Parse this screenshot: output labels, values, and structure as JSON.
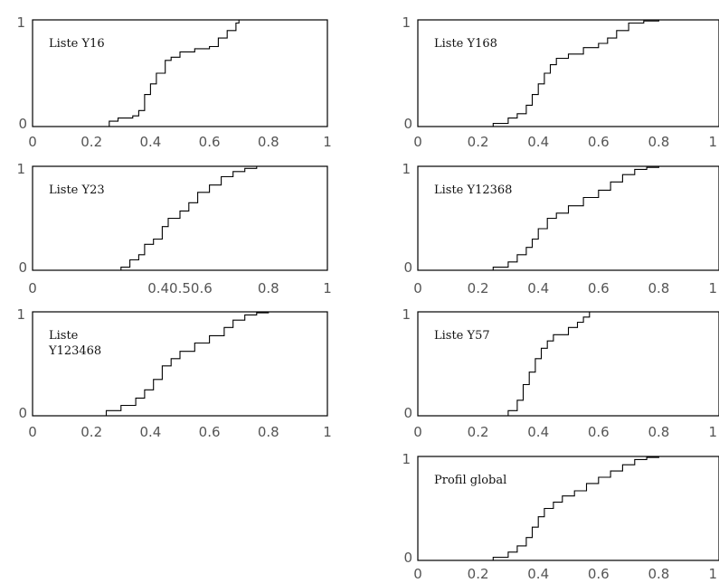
{
  "chart_data": [
    {
      "type": "line",
      "step": true,
      "annotation": [
        "Liste Y16"
      ],
      "xlim": [
        0,
        1
      ],
      "ylim": [
        0,
        1
      ],
      "xticks": [
        "0",
        "0.2",
        "0.4",
        "0.6",
        "0.8",
        "1"
      ],
      "xtick_values": [
        0,
        0.2,
        0.4,
        0.6,
        0.8,
        1
      ],
      "yticks": [
        "0",
        "1"
      ],
      "x": [
        0.2,
        0.26,
        0.29,
        0.34,
        0.36,
        0.38,
        0.4,
        0.42,
        0.45,
        0.47,
        0.5,
        0.55,
        0.6,
        0.63,
        0.66,
        0.69,
        0.7,
        1.0
      ],
      "y": [
        0.0,
        0.05,
        0.08,
        0.1,
        0.15,
        0.3,
        0.4,
        0.5,
        0.62,
        0.65,
        0.7,
        0.73,
        0.75,
        0.83,
        0.9,
        0.97,
        1.0,
        1.0
      ]
    },
    {
      "type": "line",
      "step": true,
      "annotation": [
        "Liste Y168"
      ],
      "xlim": [
        0,
        1
      ],
      "ylim": [
        0,
        1
      ],
      "xticks": [
        "0",
        "0.2",
        "0.4",
        "0.6",
        "0.8",
        "1"
      ],
      "xtick_values": [
        0,
        0.2,
        0.4,
        0.6,
        0.8,
        1
      ],
      "yticks": [
        "0",
        "1"
      ],
      "x": [
        0.2,
        0.25,
        0.3,
        0.33,
        0.36,
        0.38,
        0.4,
        0.42,
        0.44,
        0.46,
        0.5,
        0.55,
        0.6,
        0.63,
        0.66,
        0.7,
        0.75,
        0.8,
        1.0
      ],
      "y": [
        0.0,
        0.03,
        0.08,
        0.12,
        0.2,
        0.3,
        0.4,
        0.5,
        0.58,
        0.64,
        0.68,
        0.74,
        0.78,
        0.83,
        0.9,
        0.97,
        0.99,
        1.0,
        1.0
      ]
    },
    {
      "type": "line",
      "step": true,
      "annotation": [
        "Liste Y23"
      ],
      "xlim": [
        0,
        1
      ],
      "ylim": [
        0,
        1
      ],
      "xticks": [
        "0",
        "0.40.50.6",
        "0.8",
        "1"
      ],
      "xtick_values": [
        0,
        0.5,
        0.8,
        1
      ],
      "yticks": [
        "0",
        "1"
      ],
      "x": [
        0.27,
        0.3,
        0.33,
        0.36,
        0.38,
        0.41,
        0.44,
        0.46,
        0.5,
        0.53,
        0.56,
        0.6,
        0.64,
        0.68,
        0.72,
        0.76,
        1.0
      ],
      "y": [
        0.0,
        0.03,
        0.1,
        0.15,
        0.25,
        0.3,
        0.42,
        0.5,
        0.57,
        0.65,
        0.75,
        0.82,
        0.9,
        0.95,
        0.98,
        1.0,
        1.0
      ]
    },
    {
      "type": "line",
      "step": true,
      "annotation": [
        "Liste Y12368"
      ],
      "xlim": [
        0,
        1
      ],
      "ylim": [
        0,
        1
      ],
      "xticks": [
        "0",
        "0.2",
        "0.4",
        "0.6",
        "0.8",
        "1"
      ],
      "xtick_values": [
        0,
        0.2,
        0.4,
        0.6,
        0.8,
        1
      ],
      "yticks": [
        "0",
        "1"
      ],
      "x": [
        0.2,
        0.25,
        0.3,
        0.33,
        0.36,
        0.38,
        0.4,
        0.43,
        0.46,
        0.5,
        0.55,
        0.6,
        0.64,
        0.68,
        0.72,
        0.76,
        0.8,
        1.0
      ],
      "y": [
        0.0,
        0.03,
        0.08,
        0.15,
        0.22,
        0.3,
        0.4,
        0.5,
        0.55,
        0.62,
        0.7,
        0.77,
        0.85,
        0.92,
        0.97,
        0.99,
        1.0,
        1.0
      ]
    },
    {
      "type": "line",
      "step": true,
      "annotation": [
        "Liste",
        "Y123468"
      ],
      "xlim": [
        0,
        1
      ],
      "ylim": [
        0,
        1
      ],
      "xticks": [
        "0",
        "0.2",
        "0.4",
        "0.6",
        "0.8",
        "1"
      ],
      "xtick_values": [
        0,
        0.2,
        0.4,
        0.6,
        0.8,
        1
      ],
      "yticks": [
        "0",
        "1"
      ],
      "x": [
        0.2,
        0.25,
        0.3,
        0.35,
        0.38,
        0.41,
        0.44,
        0.47,
        0.5,
        0.55,
        0.6,
        0.65,
        0.68,
        0.72,
        0.76,
        0.8,
        1.0
      ],
      "y": [
        0.0,
        0.05,
        0.1,
        0.17,
        0.25,
        0.35,
        0.48,
        0.55,
        0.62,
        0.7,
        0.77,
        0.85,
        0.92,
        0.97,
        0.99,
        1.0,
        1.0
      ]
    },
    {
      "type": "line",
      "step": true,
      "annotation": [
        "Liste Y57"
      ],
      "xlim": [
        0,
        1
      ],
      "ylim": [
        0,
        1
      ],
      "xticks": [
        "0",
        "0.2",
        "0.4",
        "0.6",
        "0.8",
        "1"
      ],
      "xtick_values": [
        0,
        0.2,
        0.4,
        0.6,
        0.8,
        1
      ],
      "yticks": [
        "0",
        "1"
      ],
      "x": [
        0.22,
        0.3,
        0.33,
        0.35,
        0.37,
        0.39,
        0.41,
        0.43,
        0.45,
        0.5,
        0.53,
        0.55,
        0.57,
        1.0
      ],
      "y": [
        0.0,
        0.05,
        0.15,
        0.3,
        0.42,
        0.55,
        0.65,
        0.72,
        0.78,
        0.85,
        0.9,
        0.95,
        1.0,
        1.0
      ]
    },
    {
      "type": "line",
      "step": true,
      "annotation": [
        "Profil global"
      ],
      "xlim": [
        0,
        1
      ],
      "ylim": [
        0,
        1
      ],
      "xticks": [
        "0",
        "0.2",
        "0.4",
        "0.6",
        "0.8",
        "1"
      ],
      "xtick_values": [
        0,
        0.2,
        0.4,
        0.6,
        0.8,
        1
      ],
      "yticks": [
        "0",
        "1"
      ],
      "x": [
        0.2,
        0.25,
        0.3,
        0.33,
        0.36,
        0.38,
        0.4,
        0.42,
        0.45,
        0.48,
        0.52,
        0.56,
        0.6,
        0.64,
        0.68,
        0.72,
        0.76,
        0.8,
        1.0
      ],
      "y": [
        0.0,
        0.03,
        0.08,
        0.14,
        0.22,
        0.32,
        0.42,
        0.5,
        0.56,
        0.62,
        0.67,
        0.74,
        0.8,
        0.86,
        0.92,
        0.97,
        0.99,
        1.0,
        1.0
      ]
    }
  ]
}
